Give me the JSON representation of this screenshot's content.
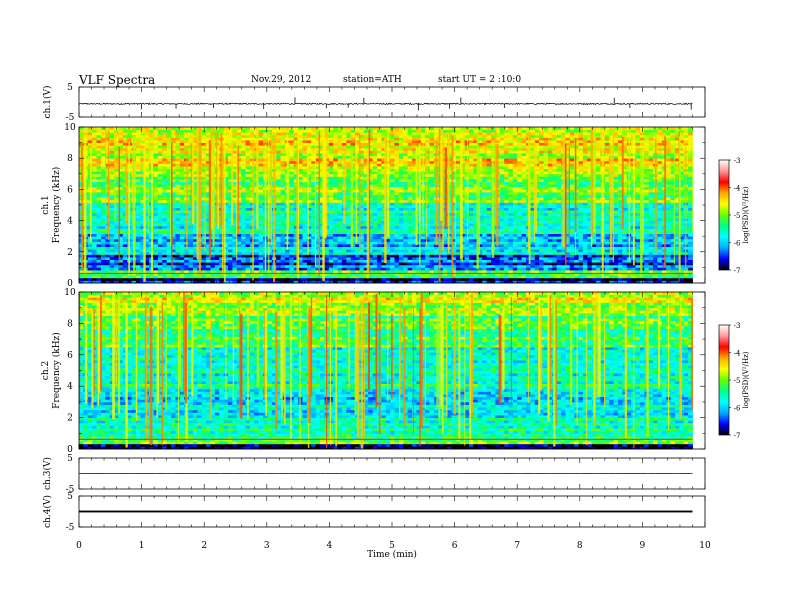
{
  "header": {
    "title": "VLF Spectra",
    "date": "Nov.29, 2012",
    "station": "station=ATH",
    "start_ut": "start  UT =  2 :10:0"
  },
  "colors": {
    "colormap": [
      "#000000",
      "#0000ff",
      "#00aaff",
      "#00ffff",
      "#00ff88",
      "#66ff00",
      "#ffff00",
      "#ffaa00",
      "#ff0000",
      "#ff9999",
      "#ffffff"
    ],
    "trace": "#000000"
  },
  "chart_data": [
    {
      "type": "line",
      "panel": "ch1-waveform",
      "ylabel": "ch.1(V)",
      "ylim": [
        -5,
        5
      ],
      "y_ticklabels": [
        "5",
        "-5"
      ],
      "xlim": [
        0,
        10
      ],
      "baseline": -0.6,
      "spikes": [
        {
          "t": 1.0,
          "v": -2.4
        },
        {
          "t": 1.55,
          "v": -2.2
        },
        {
          "t": 2.15,
          "v": -2.0
        },
        {
          "t": 2.95,
          "v": -2.3
        },
        {
          "t": 3.45,
          "v": 1.6
        },
        {
          "t": 3.95,
          "v": -2.1
        },
        {
          "t": 4.3,
          "v": -1.9
        },
        {
          "t": 4.55,
          "v": 1.4
        },
        {
          "t": 5.42,
          "v": -2.8
        },
        {
          "t": 5.92,
          "v": -2.2
        },
        {
          "t": 6.1,
          "v": 1.5
        },
        {
          "t": 6.8,
          "v": -2.0
        },
        {
          "t": 8.55,
          "v": 1.4
        },
        {
          "t": 8.8,
          "v": -2.0
        },
        {
          "t": 9.78,
          "v": -2.5
        }
      ]
    },
    {
      "type": "heatmap",
      "panel": "ch1-spectrogram",
      "ylabel": "Frequency (kHz)",
      "channel_label": "ch.1",
      "xlim": [
        0,
        10
      ],
      "ylim": [
        0,
        10
      ],
      "y_ticklabels": [
        "10",
        "8",
        "6",
        "4",
        "2",
        "0"
      ],
      "data_end_min": 9.8,
      "colorbar": {
        "label": "log(PSD)(V²/Hz)",
        "range": [
          -7,
          -3
        ],
        "ticklabels": [
          "-3",
          "-4",
          "-5",
          "-6",
          "-7"
        ]
      },
      "bands": [
        {
          "f": [
            0.0,
            0.4
          ],
          "level": -6.8
        },
        {
          "f": [
            0.4,
            0.8
          ],
          "level": -5.3
        },
        {
          "f": [
            0.8,
            1.8
          ],
          "level": -6.4
        },
        {
          "f": [
            1.8,
            3.2
          ],
          "level": -6.0
        },
        {
          "f": [
            3.2,
            5.2
          ],
          "level": -5.6
        },
        {
          "f": [
            5.2,
            7.2
          ],
          "level": -5.1
        },
        {
          "f": [
            7.2,
            10.0
          ],
          "level": -4.6
        }
      ]
    },
    {
      "type": "heatmap",
      "panel": "ch2-spectrogram",
      "ylabel": "Frequency (kHz)",
      "channel_label": "ch.2",
      "xlim": [
        0,
        10
      ],
      "ylim": [
        0,
        10
      ],
      "y_ticklabels": [
        "10",
        "8",
        "6",
        "4",
        "2",
        "0"
      ],
      "data_end_min": 9.8,
      "colorbar": {
        "label": "log(PSD)(V²/Hz)",
        "range": [
          -7,
          -3
        ],
        "ticklabels": [
          "-3",
          "-4",
          "-5",
          "-6",
          "-7"
        ]
      },
      "bands": [
        {
          "f": [
            0.0,
            0.4
          ],
          "level": -6.8
        },
        {
          "f": [
            0.4,
            0.8
          ],
          "level": -5.2
        },
        {
          "f": [
            0.8,
            2.0
          ],
          "level": -5.5
        },
        {
          "f": [
            2.0,
            4.0
          ],
          "level": -5.8
        },
        {
          "f": [
            4.0,
            6.5
          ],
          "level": -5.6
        },
        {
          "f": [
            6.5,
            8.5
          ],
          "level": -5.3
        },
        {
          "f": [
            8.5,
            10.0
          ],
          "level": -4.8
        }
      ]
    },
    {
      "type": "line",
      "panel": "ch3-waveform",
      "ylabel": "ch.3(V)",
      "ylim": [
        -5,
        5
      ],
      "y_ticklabels": [
        "5",
        "-5"
      ],
      "xlim": [
        0,
        10
      ],
      "baseline": 0.0,
      "spikes": []
    },
    {
      "type": "line",
      "panel": "ch4-waveform",
      "ylabel": "ch.4(V)",
      "ylim": [
        -5,
        5
      ],
      "y_ticklabels": [
        "5",
        "-5"
      ],
      "xlim": [
        0,
        10
      ],
      "baseline": 0.0,
      "noise_band": 0.6,
      "spikes": []
    }
  ],
  "xaxis": {
    "label": "Time (min)",
    "ticklabels": [
      "0",
      "1",
      "2",
      "3",
      "4",
      "5",
      "6",
      "7",
      "8",
      "9",
      "10"
    ]
  }
}
